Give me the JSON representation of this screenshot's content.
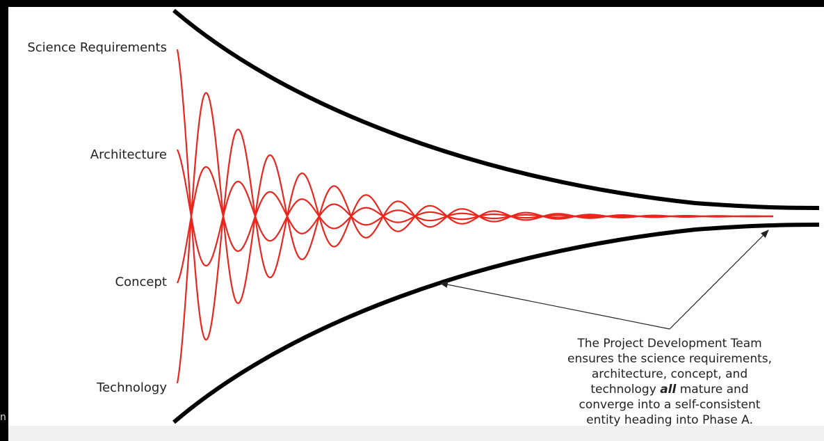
{
  "stages": [
    "Science Requirements",
    "Architecture",
    "Concept",
    "Technology"
  ],
  "edge_fragment": "n",
  "annotation": {
    "line1": "The Project Development Team",
    "line2": "ensures the science requirements,",
    "line3": "architecture, concept, and",
    "line4": {
      "before": "technology ",
      "emphasis": "all",
      "after": " mature and"
    },
    "line5": "converge into a self-consistent",
    "line6": "entity heading into Phase A."
  }
}
